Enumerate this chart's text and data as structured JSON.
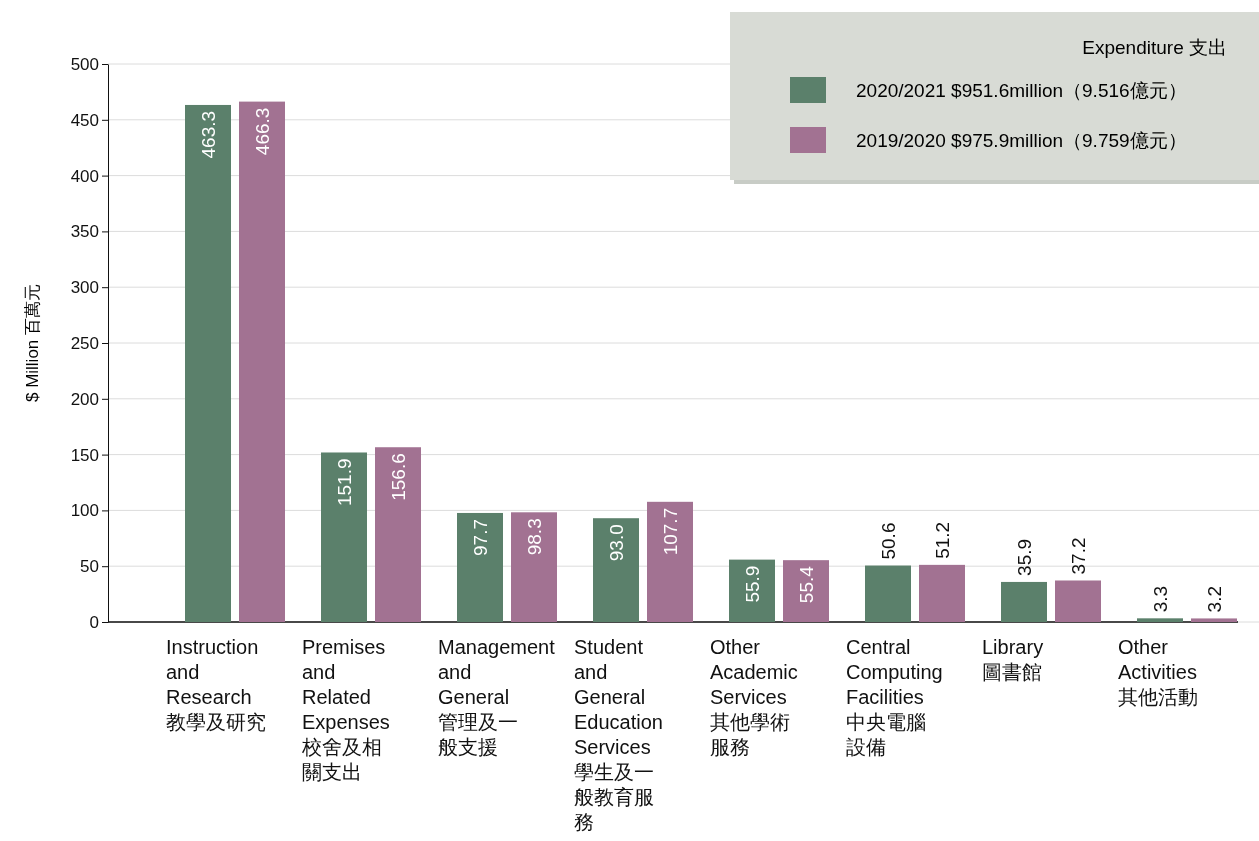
{
  "chart_data": {
    "type": "bar",
    "categories": [
      "Instruction\nand\nResearch\n教學及研究",
      "Premises\nand\nRelated\nExpenses\n校舍及相關支出",
      "Management\nand\nGeneral\n管理及一般支援",
      "Student\nand\nGeneral\nEducation\nServices\n學生及一般教育服務",
      "Other\nAcademic\nServices\n其他學術服務",
      "Central\nComputing\nFacilities\n中央電腦設備",
      "Library\n圖書館",
      "Other\nActivities\n其他活動"
    ],
    "series": [
      {
        "name": "2020/2021 $951.6million（9.516億元）",
        "color": "#5b806b",
        "values": [
          463.3,
          151.9,
          97.7,
          93.0,
          55.9,
          50.6,
          35.9,
          3.3
        ],
        "value_labels": [
          "463.3",
          "151.9",
          "97.7",
          "93.0",
          "55.9",
          "50.6",
          "35.9",
          "3.3"
        ]
      },
      {
        "name": "2019/2020 $975.9million（9.759億元）",
        "color": "#a27292",
        "values": [
          466.3,
          156.6,
          98.3,
          107.7,
          55.4,
          51.2,
          37.2,
          3.2
        ],
        "value_labels": [
          "466.3",
          "156.6",
          "98.3",
          "107.7",
          "55.4",
          "51.2",
          "37.2",
          "3.2"
        ]
      }
    ],
    "ylabel": "$ Million 百萬元",
    "legend_title": "Expenditure 支出",
    "ylim": [
      0,
      500
    ],
    "yticks": [
      0,
      50,
      100,
      150,
      200,
      250,
      300,
      350,
      400,
      450,
      500
    ],
    "grid": "y",
    "legend": "top right"
  }
}
